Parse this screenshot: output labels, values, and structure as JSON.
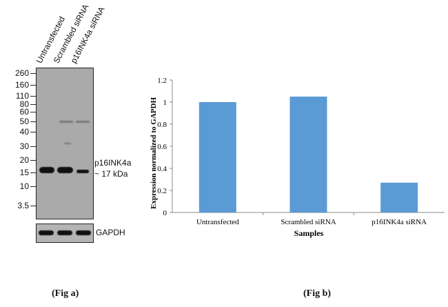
{
  "fig_a": {
    "lanes": [
      "Untransfected",
      "Scrambled siRNA",
      "p16INK4a siRNA"
    ],
    "markers": [
      "260",
      "160",
      "110",
      "80",
      "60",
      "50",
      "40",
      "30",
      "20",
      "15",
      "10",
      "3.5"
    ],
    "band_label_line1": "p16INK4a",
    "band_label_line2": "~ 17 kDa",
    "loading_control": "GAPDH",
    "caption": "(Fig a)"
  },
  "fig_b": {
    "caption": "(Fig b)"
  },
  "chart_data": {
    "type": "bar",
    "categories": [
      "Untransfected",
      "Scrambled siRNA",
      "p16INK4a siRNA"
    ],
    "values": [
      1.0,
      1.05,
      0.27
    ],
    "xlabel": "Samples",
    "ylabel": "Expression  normalized to GAPDH",
    "ylim": [
      0,
      1.2
    ],
    "yticks": [
      "0",
      "0.2",
      "0.4",
      "0.6",
      "0.8",
      "1",
      "1.2"
    ],
    "bar_color": "#5b9bd5",
    "grid": false,
    "legend": "none"
  }
}
